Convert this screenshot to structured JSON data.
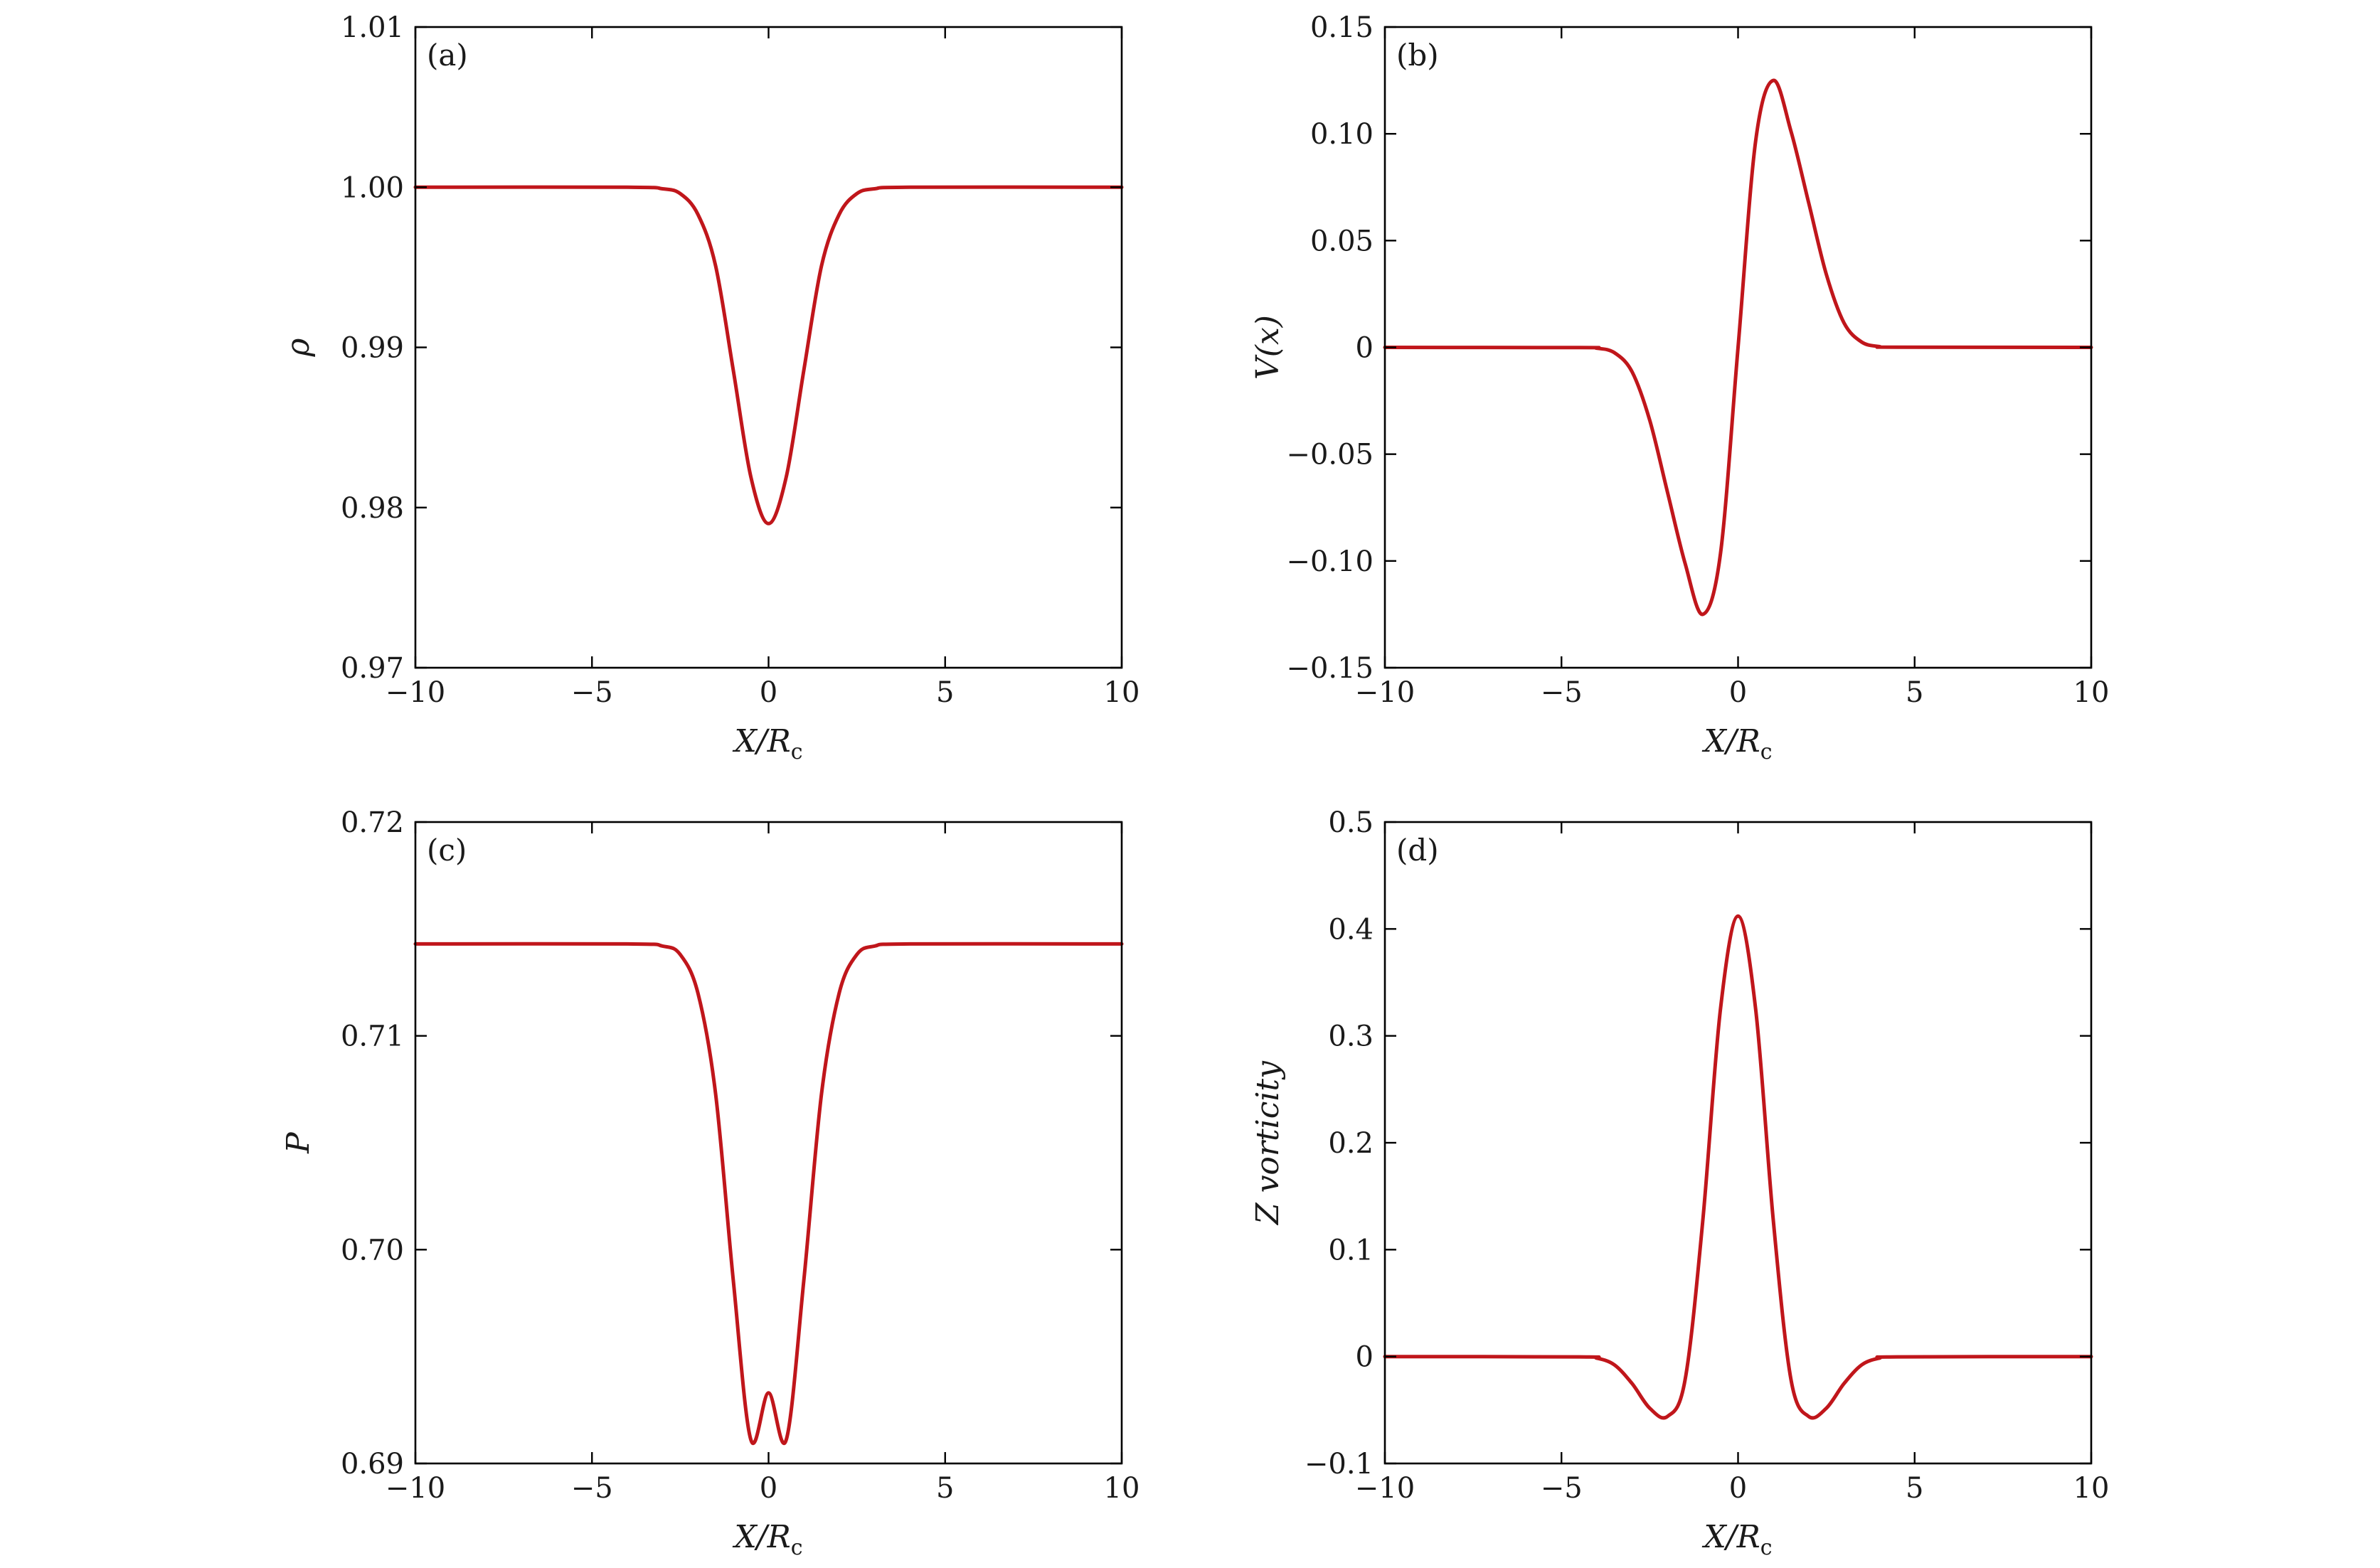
{
  "chart_data": [
    {
      "type": "line",
      "panel_label": "(a)",
      "xlabel": "X/R",
      "xlabel_sub": "c",
      "ylabel": "ρ",
      "xlim": [
        -10,
        10
      ],
      "ylim": [
        0.97,
        1.01
      ],
      "xticks": [
        -10,
        -5,
        0,
        5,
        10
      ],
      "xtick_labels": [
        "−10",
        "−5",
        "0",
        "5",
        "10"
      ],
      "yticks": [
        0.97,
        0.98,
        0.99,
        1.0,
        1.01
      ],
      "ytick_labels": [
        "0.97",
        "0.98",
        "0.99",
        "1.00",
        "1.01"
      ],
      "grid": false,
      "color": "#c0161b",
      "series": [
        {
          "x": [
            -10,
            -4,
            -3,
            -2.5,
            -2,
            -1.5,
            -1,
            -0.5,
            0,
            0.5,
            1,
            1.5,
            2,
            2.5,
            3,
            4,
            10
          ],
          "y": [
            1.0,
            1.0,
            0.9999,
            0.9996,
            0.9983,
            0.9951,
            0.9886,
            0.9819,
            0.979,
            0.9819,
            0.9886,
            0.9951,
            0.9983,
            0.9996,
            0.9999,
            1.0,
            1.0
          ]
        }
      ]
    },
    {
      "type": "line",
      "panel_label": "(b)",
      "xlabel": "X/R",
      "xlabel_sub": "c",
      "ylabel": "V(x)",
      "xlim": [
        -10,
        10
      ],
      "ylim": [
        -0.15,
        0.15
      ],
      "xticks": [
        -10,
        -5,
        0,
        5,
        10
      ],
      "xtick_labels": [
        "−10",
        "−5",
        "0",
        "5",
        "10"
      ],
      "yticks": [
        -0.15,
        -0.1,
        -0.05,
        0,
        0.05,
        0.1,
        0.15
      ],
      "ytick_labels": [
        "−0.15",
        "−0.10",
        "−0.05",
        "0",
        "0.05",
        "0.10",
        "0.15"
      ],
      "grid": false,
      "color": "#c0161b",
      "series": [
        {
          "x": [
            -10,
            -4.5,
            -4,
            -3.5,
            -3,
            -2.5,
            -2,
            -1.5,
            -1,
            -0.5,
            0,
            0.5,
            1,
            1.5,
            2,
            2.5,
            3,
            3.5,
            4,
            4.5,
            10
          ],
          "y": [
            0,
            -0.0001,
            -0.0004,
            -0.0025,
            -0.0115,
            -0.0342,
            -0.0677,
            -0.1011,
            -0.125,
            -0.0968,
            0,
            0.0968,
            0.125,
            0.1011,
            0.0677,
            0.0342,
            0.0115,
            0.0025,
            0.0004,
            0.0001,
            0
          ]
        }
      ]
    },
    {
      "type": "line",
      "panel_label": "(c)",
      "xlabel": "X/R",
      "xlabel_sub": "c",
      "ylabel": "P",
      "xlim": [
        -10,
        10
      ],
      "ylim": [
        0.69,
        0.72
      ],
      "xticks": [
        -10,
        -5,
        0,
        5,
        10
      ],
      "xtick_labels": [
        "−10",
        "−5",
        "0",
        "5",
        "10"
      ],
      "yticks": [
        0.69,
        0.7,
        0.71,
        0.72
      ],
      "ytick_labels": [
        "0.69",
        "0.70",
        "0.71",
        "0.72"
      ],
      "grid": false,
      "color": "#c0161b",
      "series": [
        {
          "x": [
            -10,
            -4,
            -3,
            -2.5,
            -2,
            -1.5,
            -1,
            -0.5,
            0,
            0.5,
            1,
            1.5,
            2,
            2.5,
            3,
            4,
            10
          ],
          "y": [
            0.7143,
            0.7143,
            0.7142,
            0.7138,
            0.712,
            0.7073,
            0.6986,
            0.6911,
            0.6933,
            0.6911,
            0.6986,
            0.7073,
            0.712,
            0.7138,
            0.7142,
            0.7143,
            0.7143
          ]
        }
      ]
    },
    {
      "type": "line",
      "panel_label": "(d)",
      "xlabel": "X/R",
      "xlabel_sub": "c",
      "ylabel": "Z vorticity",
      "xlim": [
        -10,
        10
      ],
      "ylim": [
        -0.1,
        0.5
      ],
      "xticks": [
        -10,
        -5,
        0,
        5,
        10
      ],
      "xtick_labels": [
        "−10",
        "−5",
        "0",
        "5",
        "10"
      ],
      "yticks": [
        -0.1,
        0,
        0.1,
        0.2,
        0.3,
        0.4,
        0.5
      ],
      "ytick_labels": [
        "−0.1",
        "0",
        "0.1",
        "0.2",
        "0.3",
        "0.4",
        "0.5"
      ],
      "grid": false,
      "color": "#c0161b",
      "series": [
        {
          "x": [
            -10,
            -4.5,
            -4,
            -3.5,
            -3,
            -2.5,
            -2,
            -1.5,
            -1,
            -0.5,
            0,
            0.5,
            1,
            1.5,
            2,
            2.5,
            3,
            3.5,
            4,
            4.5,
            10
          ],
          "y": [
            0,
            -0.0003,
            -0.0015,
            -0.0078,
            -0.0253,
            -0.0483,
            -0.056,
            -0.0219,
            0.1263,
            0.3246,
            0.412,
            0.3246,
            0.1263,
            -0.0219,
            -0.056,
            -0.0483,
            -0.0253,
            -0.0078,
            -0.0015,
            -0.0003,
            0
          ]
        }
      ]
    }
  ]
}
